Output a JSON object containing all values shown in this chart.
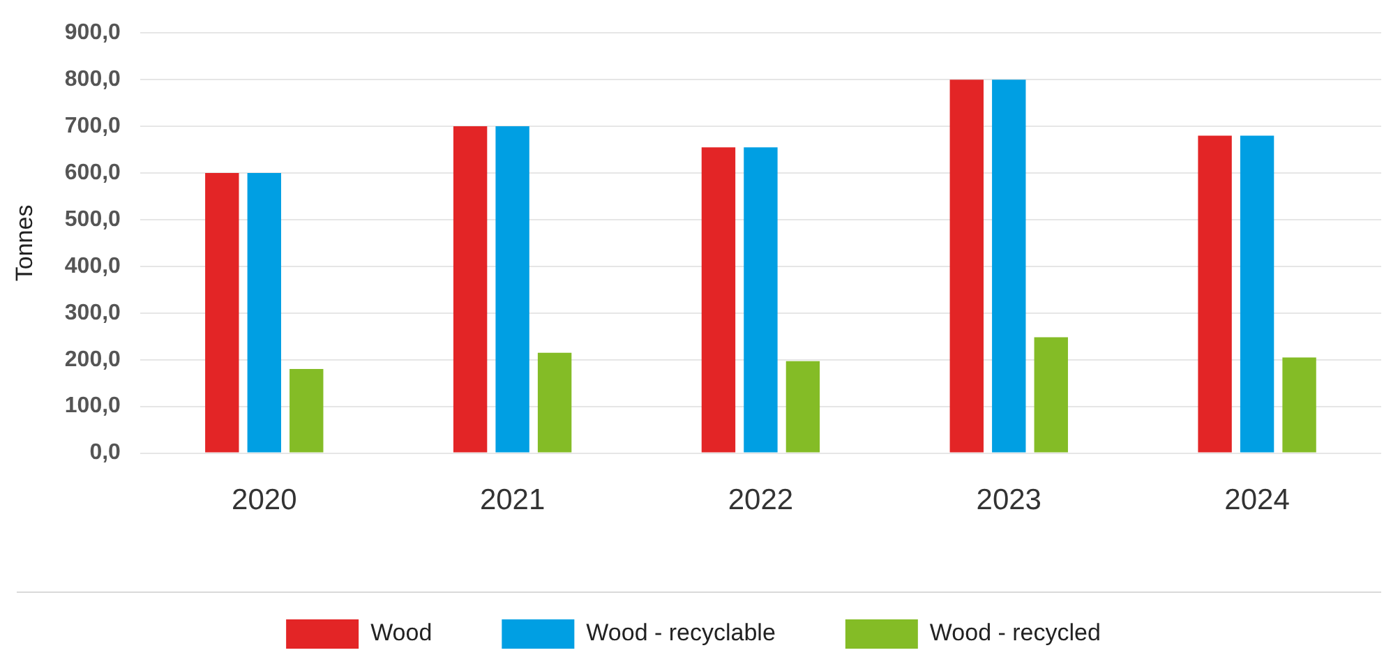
{
  "chart_data": {
    "type": "bar",
    "ylabel": "Tonnes",
    "categories": [
      "2020",
      "2021",
      "2022",
      "2023",
      "2024"
    ],
    "series": [
      {
        "name": "Wood",
        "color": "#e32526",
        "values": [
          600,
          700,
          655,
          800,
          680
        ]
      },
      {
        "name": "Wood - recyclable",
        "color": "#009fe3",
        "values": [
          600,
          700,
          655,
          800,
          680
        ]
      },
      {
        "name": "Wood - recycled",
        "color": "#84bc26",
        "values": [
          180,
          215,
          197,
          248,
          205
        ]
      }
    ],
    "ylim": [
      0,
      900
    ],
    "yticks": [
      {
        "value": 0,
        "label": "0,0"
      },
      {
        "value": 100,
        "label": "100,0"
      },
      {
        "value": 200,
        "label": "200,0"
      },
      {
        "value": 300,
        "label": "300,0"
      },
      {
        "value": 400,
        "label": "400,0"
      },
      {
        "value": 500,
        "label": "500,0"
      },
      {
        "value": 600,
        "label": "600,0"
      },
      {
        "value": 700,
        "label": "700,0"
      },
      {
        "value": 800,
        "label": "800,0"
      },
      {
        "value": 900,
        "label": "900,0"
      }
    ],
    "grid": "y",
    "legend": "bottom"
  }
}
